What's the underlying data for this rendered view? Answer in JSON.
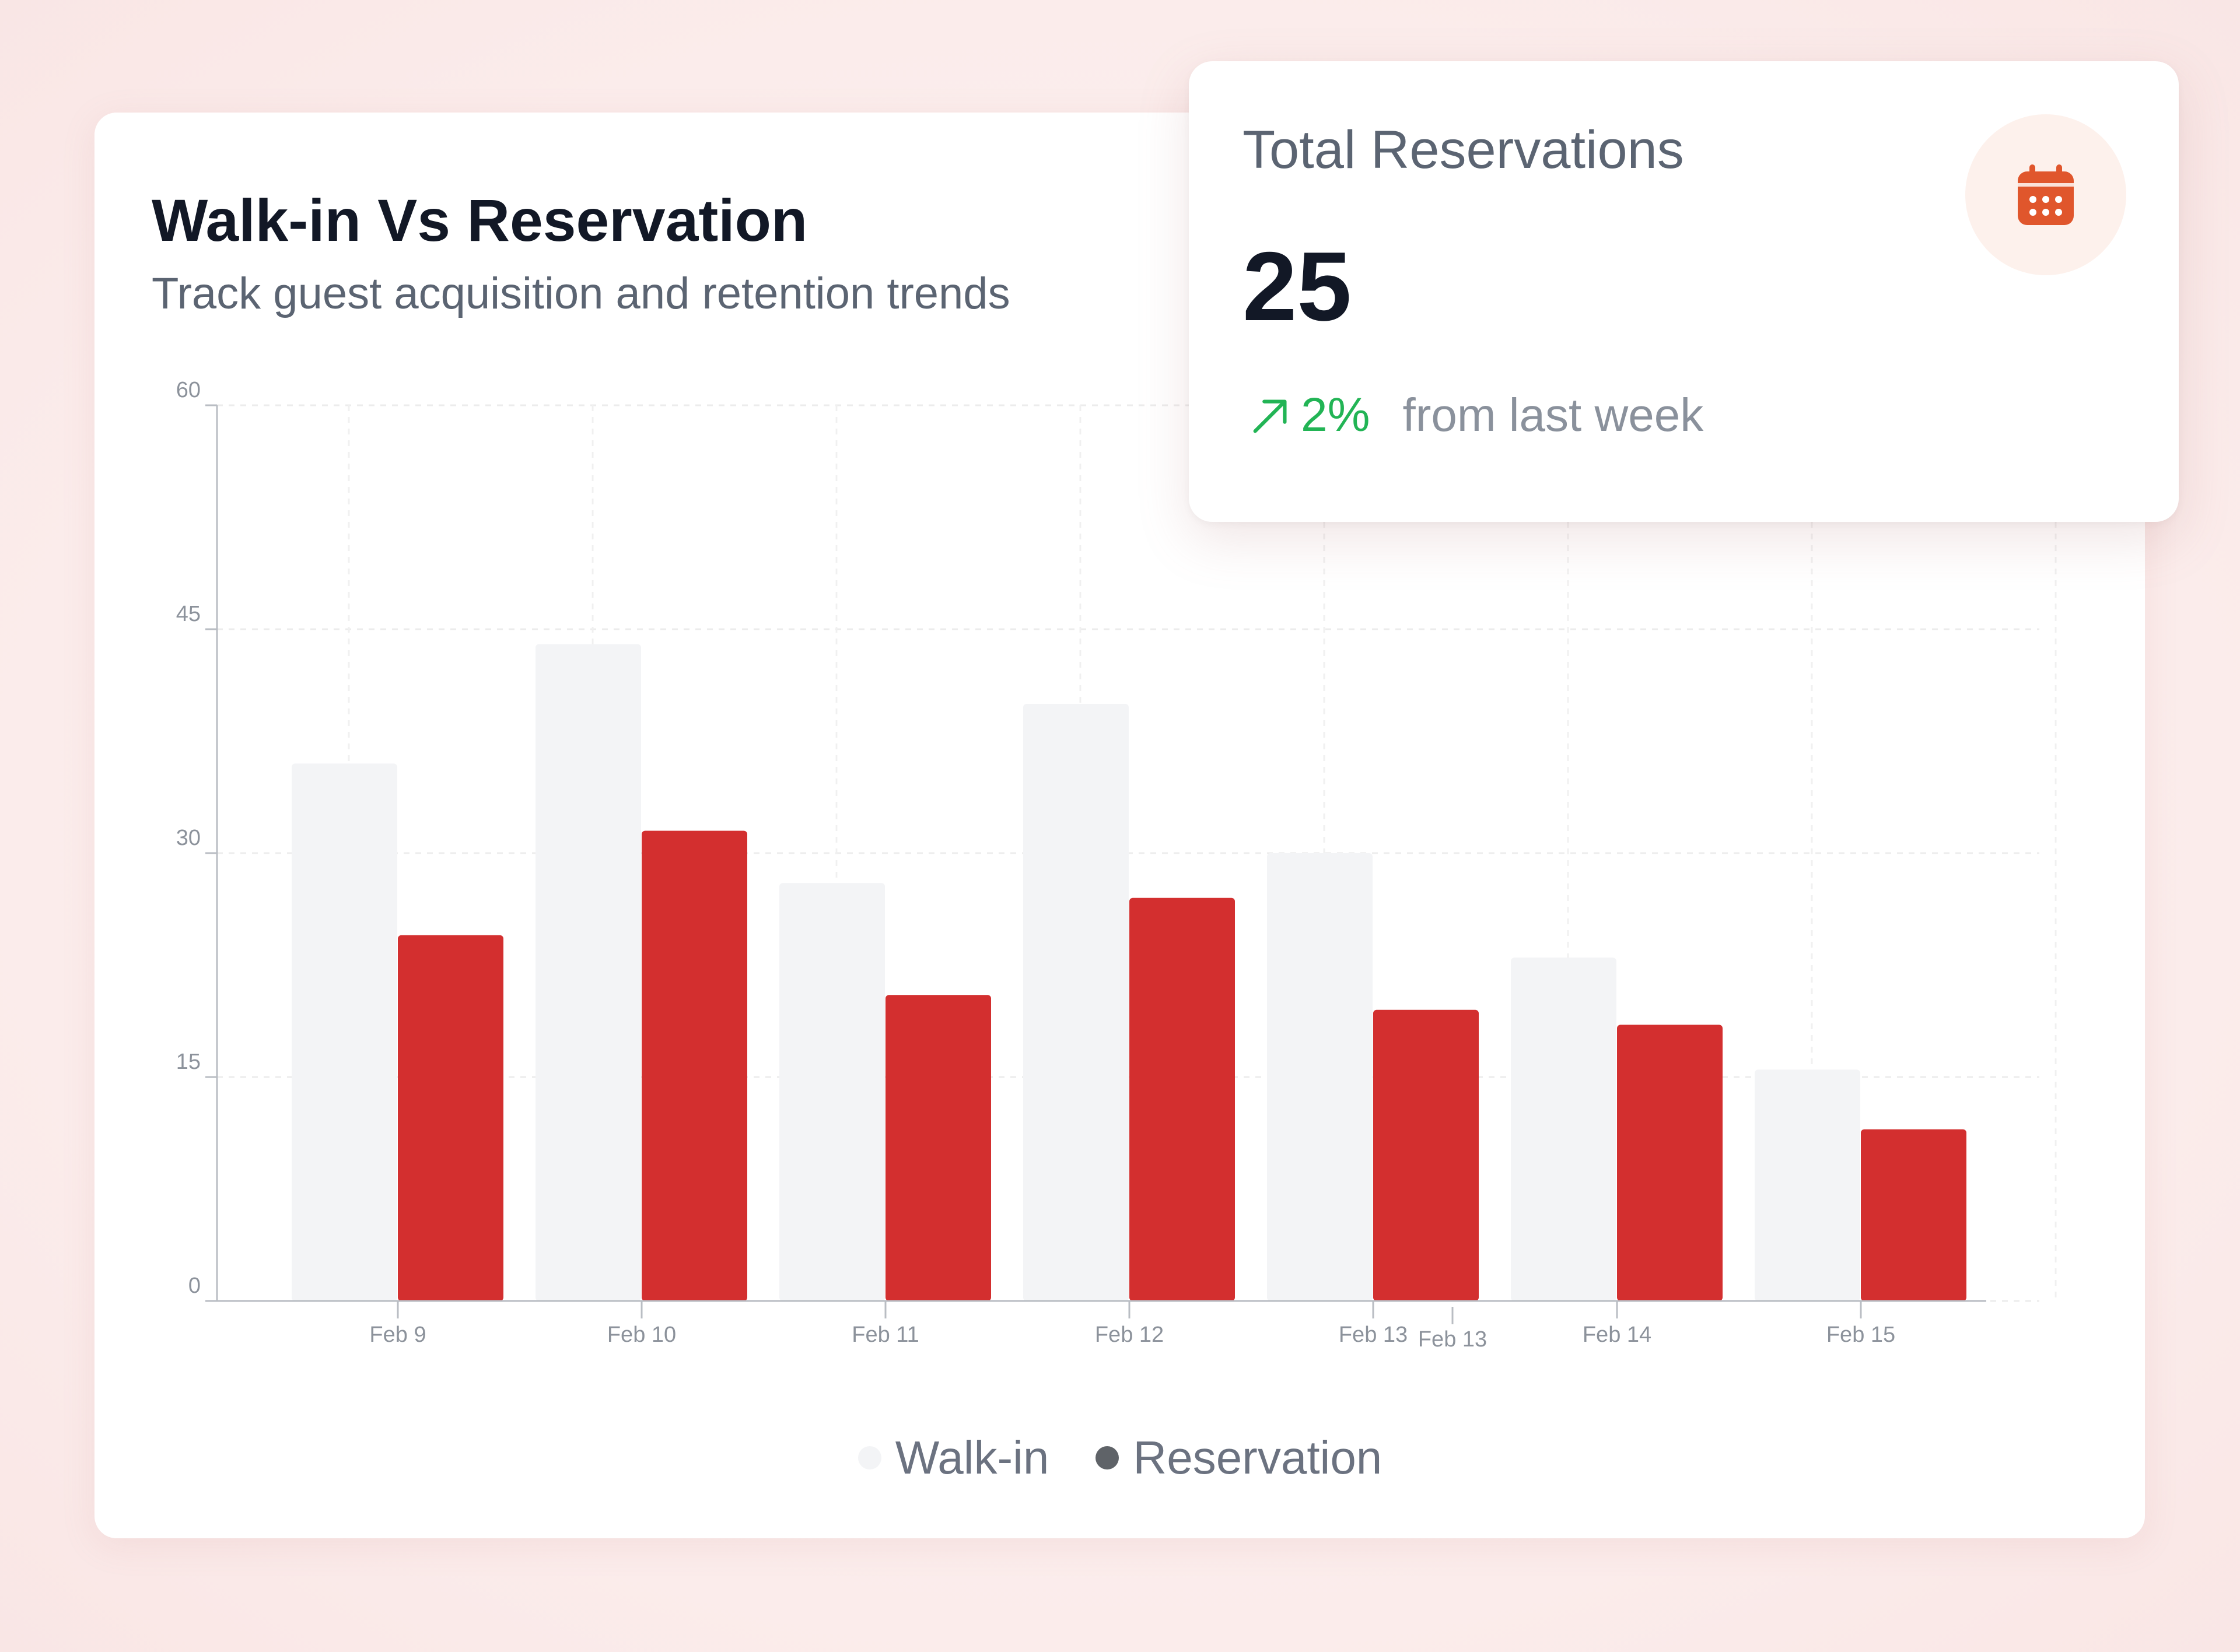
{
  "colors": {
    "walkin": "#f3f4f6",
    "reservation": "#d32f2f",
    "trend_up": "#22b455",
    "calendar_icon": "#e0562c"
  },
  "chart_data": {
    "type": "bar",
    "title": "Walk-in Vs Reservation",
    "subtitle": "Track guest acquisition and retention trends",
    "categories": [
      "Feb 9",
      "Feb 10",
      "Feb 11",
      "Feb 12",
      "Feb 13",
      "Feb 14",
      "Feb 15"
    ],
    "series": [
      {
        "name": "Walk-in",
        "values": [
          36,
          44,
          28,
          40,
          30,
          23,
          15.5
        ]
      },
      {
        "name": "Reservation",
        "values": [
          24.5,
          31.5,
          20.5,
          27,
          19.5,
          18.5,
          11.5
        ]
      }
    ],
    "extra_tick_label": "Feb 13",
    "yticks": [
      0,
      15,
      30,
      45,
      60
    ],
    "ylim": [
      0,
      60
    ],
    "grid": true,
    "legend_position": "bottom-center"
  },
  "stat_card": {
    "title": "Total Reservations",
    "value": "25",
    "trend_pct": "2%",
    "trend_text": "from last week",
    "icon": "calendar-icon"
  }
}
